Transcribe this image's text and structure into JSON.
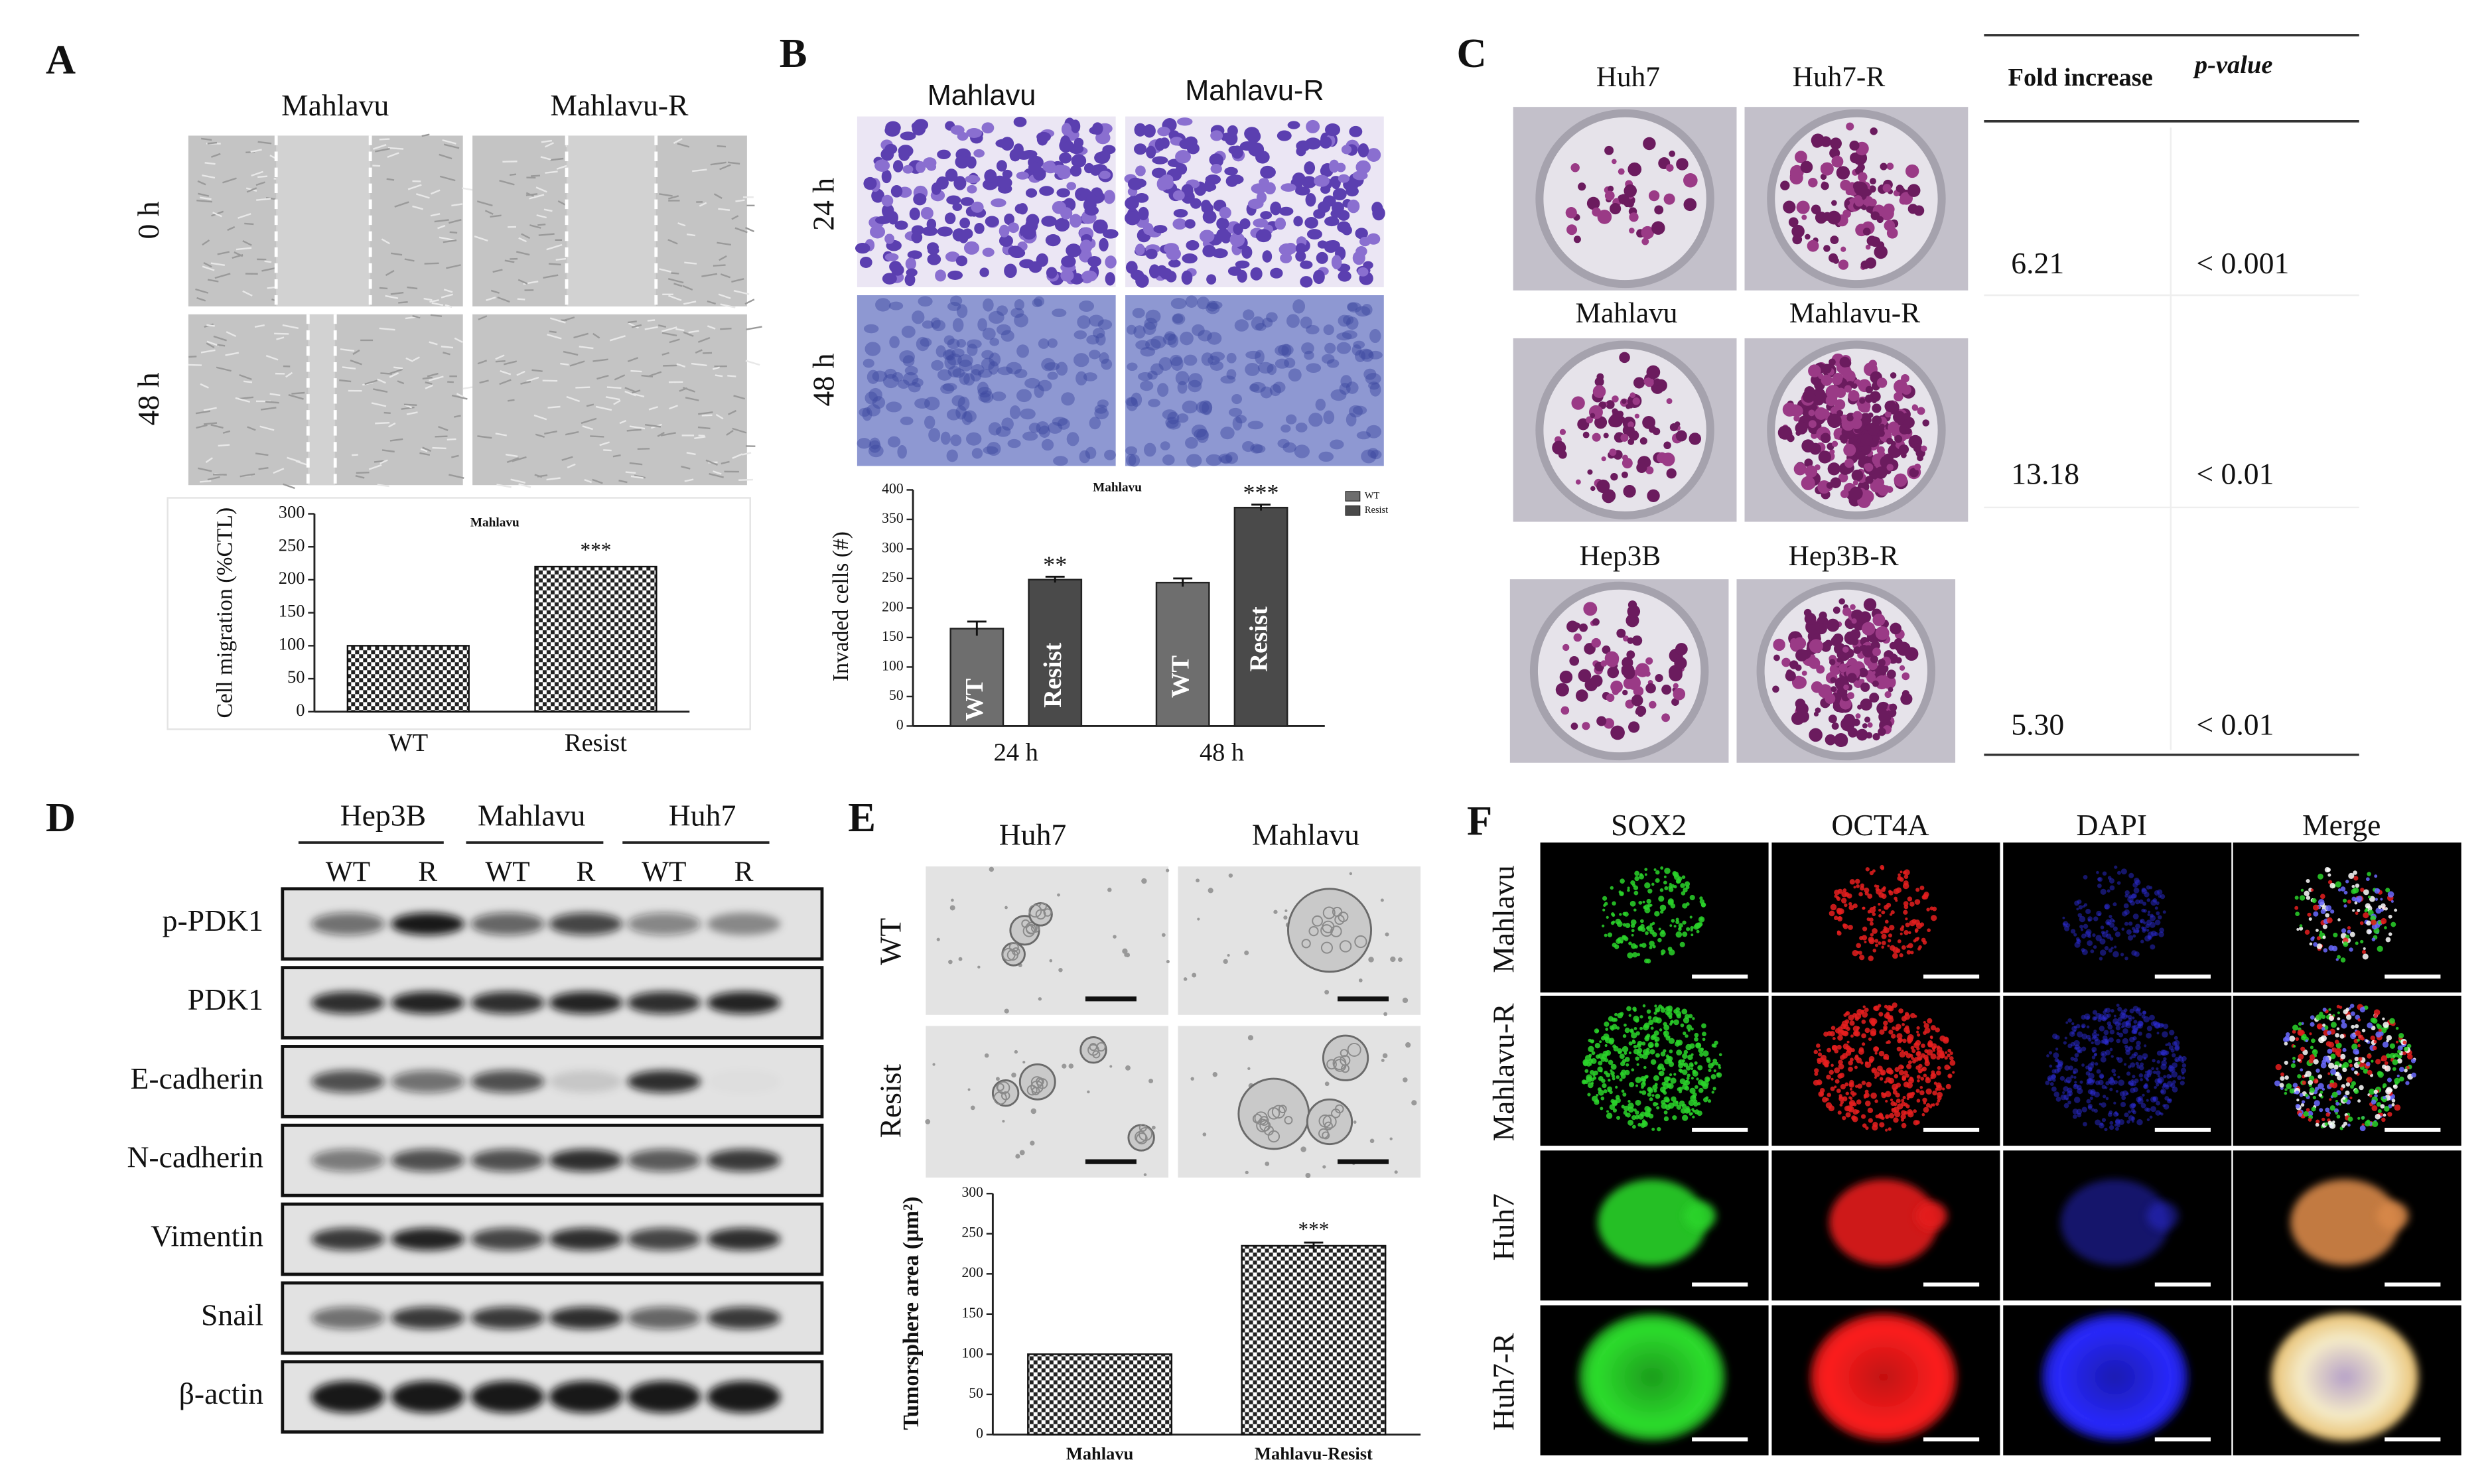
{
  "panels": {
    "A": {
      "label": "A",
      "columns": [
        "Mahlavu",
        "Mahlavu-R"
      ],
      "rows": [
        "0 h",
        "48 h"
      ]
    },
    "B": {
      "label": "B",
      "columns": [
        "Mahlavu",
        "Mahlavu-R"
      ],
      "rows": [
        "24 h",
        "48 h"
      ]
    },
    "C": {
      "label": "C",
      "images": [
        "Huh7",
        "Huh7-R",
        "Mahlavu",
        "Mahlavu-R",
        "Hep3B",
        "Hep3B-R"
      ],
      "table": {
        "header": [
          "Fold increase",
          "p-value"
        ],
        "rows": [
          [
            "6.21",
            "< 0.001"
          ],
          [
            "13.18",
            "< 0.01"
          ],
          [
            "5.30",
            "< 0.01"
          ]
        ]
      }
    },
    "D": {
      "label": "D",
      "cell_lines": [
        "Hep3B",
        "Mahlavu",
        "Huh7"
      ],
      "lanes": [
        "WT",
        "R",
        "WT",
        "R",
        "WT",
        "R"
      ],
      "proteins": [
        "p-PDK1",
        "PDK1",
        "E-cadherin",
        "N-cadherin",
        "Vimentin",
        "Snail",
        "β-actin"
      ]
    },
    "E": {
      "label": "E",
      "columns": [
        "Huh7",
        "Mahlavu"
      ],
      "rows": [
        "WT",
        "Resist"
      ]
    },
    "F": {
      "label": "F",
      "columns": [
        "SOX2",
        "OCT4A",
        "DAPI",
        "Merge"
      ],
      "rows": [
        "Mahlavu",
        "Mahlavu-R",
        "Huh7",
        "Huh7-R"
      ]
    }
  },
  "chart_data": [
    {
      "type": "bar",
      "title": "Mahlavu",
      "y_label": "Cell migration (%CTL)",
      "categories": [
        "WT",
        "Resist"
      ],
      "values": [
        100,
        220
      ],
      "annotations": [
        null,
        "***"
      ],
      "color": "#222222",
      "pattern": "checkered",
      "ylim": [
        0,
        300
      ],
      "yticks": [
        0,
        50,
        100,
        150,
        200,
        250,
        300
      ]
    },
    {
      "type": "bar",
      "title": "Mahlavu",
      "y_label": "Invaded cells (#)",
      "categories": [
        "24 h",
        "48 h"
      ],
      "series": [
        {
          "name": "WT",
          "color": "#6e6e6e",
          "values": [
            165,
            243
          ],
          "errors": [
            12,
            7
          ]
        },
        {
          "name": "Resist",
          "color": "#4a4a4a",
          "values": [
            248,
            370
          ],
          "errors": [
            5,
            5
          ],
          "annotations": [
            "**",
            "***"
          ]
        }
      ],
      "legend": "top right",
      "ylim": [
        0,
        400
      ],
      "yticks": [
        0,
        50,
        100,
        150,
        200,
        250,
        300,
        350,
        400
      ]
    },
    {
      "type": "bar",
      "y_label": "Tumorsphere area (μm²)",
      "categories": [
        "Mahlavu",
        "Mahlavu-Resist"
      ],
      "values": [
        100,
        235
      ],
      "errors": [
        null,
        4
      ],
      "annotations": [
        null,
        "***"
      ],
      "color": "#222222",
      "pattern": "checkered",
      "ylim": [
        0,
        300
      ],
      "yticks": [
        0,
        50,
        100,
        150,
        200,
        250,
        300
      ]
    }
  ]
}
